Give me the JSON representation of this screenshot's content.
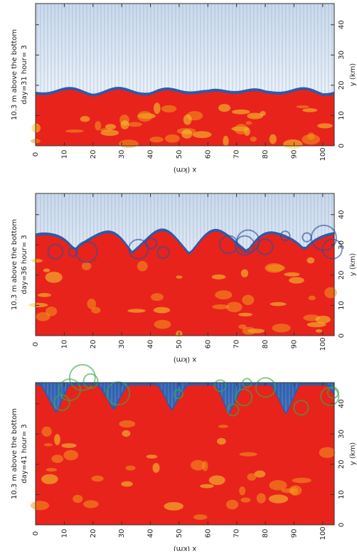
{
  "panels": [
    {
      "label_line1": "10.3 m above the bottom",
      "label_line2": "day=31 hour= 3",
      "x_label": "x (km)",
      "y_label": "y (km)",
      "xlim": [
        0,
        104
      ],
      "ylim": [
        0,
        47
      ],
      "xticks": [
        0,
        10,
        20,
        30,
        40,
        50,
        60,
        70,
        80,
        90,
        100
      ],
      "yticks": [
        0,
        10,
        20,
        30,
        40
      ]
    },
    {
      "label_line1": "10.3 m above the bottom",
      "label_line2": "day=36 hour= 3",
      "x_label": "x (km)",
      "y_label": "y (km)",
      "xlim": [
        0,
        104
      ],
      "ylim": [
        0,
        47
      ],
      "xticks": [
        0,
        10,
        20,
        30,
        40,
        50,
        60,
        70,
        80,
        90,
        100
      ],
      "yticks": [
        0,
        10,
        20,
        30,
        40
      ]
    },
    {
      "label_line1": "10.3 m above the bottom",
      "label_line2": "day=41 hour= 3",
      "x_label": "x (km)",
      "y_label": "y (km)",
      "xlim": [
        0,
        104
      ],
      "ylim": [
        0,
        47
      ],
      "xticks": [
        0,
        10,
        20,
        30,
        40,
        50,
        60,
        70,
        80,
        90,
        100
      ],
      "yticks": [
        0,
        10,
        20,
        30,
        40
      ]
    }
  ]
}
